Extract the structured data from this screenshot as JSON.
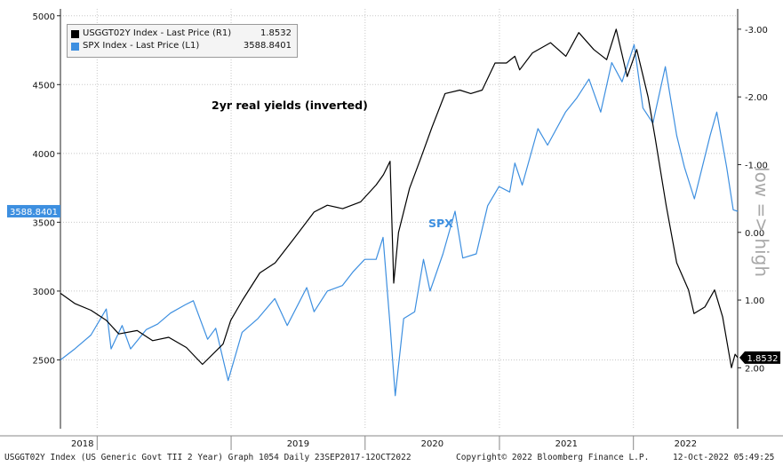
{
  "chart_data": {
    "type": "line",
    "annotations": {
      "yields_label": "2yr real yields (inverted)",
      "spx_label": "SPX",
      "right_axis_note": "low => high"
    },
    "legend": {
      "placement": "top-left",
      "entries": [
        {
          "name": "USGGT02Y Index - Last Price (R1)",
          "value": "1.8532",
          "color": "#000000"
        },
        {
          "name": "SPX Index - Last Price (L1)",
          "value": "3588.8401",
          "color": "#3d8fe0"
        }
      ]
    },
    "left_axis": {
      "ylim": [
        2000,
        5050
      ],
      "ticks": [
        "2500",
        "3000",
        "3500",
        "4000",
        "4500",
        "5000"
      ],
      "last_value_tag": "3588.8401"
    },
    "right_axis": {
      "inverted": true,
      "ylim": [
        -3.3,
        2.9
      ],
      "ticks": [
        "-3.00",
        "-2.00",
        "-1.00",
        "0.00",
        "1.00",
        "2.00"
      ],
      "last_value_tag": "1.8532"
    },
    "x_axis": {
      "xlim": [
        "2017-09-23",
        "2022-10-12"
      ],
      "years": [
        "2018",
        "2019",
        "2020",
        "2021",
        "2022"
      ],
      "year_starts": [
        "2018-01-01",
        "2019-01-01",
        "2020-01-01",
        "2021-01-01",
        "2022-01-01"
      ]
    },
    "grid": true,
    "series": [
      {
        "name": "SPX Index - Last Price (L1)",
        "axis": "left",
        "color": "#3d8fe0",
        "x": [
          "2017-09-23",
          "2017-11-01",
          "2017-12-15",
          "2018-01-26",
          "2018-02-08",
          "2018-03-10",
          "2018-04-02",
          "2018-05-15",
          "2018-06-15",
          "2018-07-20",
          "2018-08-29",
          "2018-09-20",
          "2018-10-29",
          "2018-11-20",
          "2018-12-24",
          "2019-01-31",
          "2019-03-15",
          "2019-04-30",
          "2019-06-03",
          "2019-07-26",
          "2019-08-15",
          "2019-09-20",
          "2019-10-31",
          "2019-11-29",
          "2019-12-31",
          "2020-01-31",
          "2020-02-19",
          "2020-03-09",
          "2020-03-23",
          "2020-04-15",
          "2020-05-15",
          "2020-06-08",
          "2020-06-26",
          "2020-07-31",
          "2020-09-02",
          "2020-09-23",
          "2020-10-30",
          "2020-11-30",
          "2020-12-31",
          "2021-01-29",
          "2021-02-12",
          "2021-03-04",
          "2021-04-16",
          "2021-05-12",
          "2021-06-30",
          "2021-07-30",
          "2021-09-02",
          "2021-10-04",
          "2021-11-03",
          "2021-12-01",
          "2022-01-03",
          "2022-01-27",
          "2022-02-23",
          "2022-03-29",
          "2022-04-29",
          "2022-05-20",
          "2022-06-16",
          "2022-07-29",
          "2022-08-16",
          "2022-09-12",
          "2022-09-30",
          "2022-10-12"
        ],
        "y": [
          2500,
          2580,
          2680,
          2870,
          2580,
          2750,
          2580,
          2720,
          2760,
          2840,
          2900,
          2930,
          2650,
          2730,
          2350,
          2700,
          2800,
          2945,
          2750,
          3025,
          2850,
          3000,
          3040,
          3140,
          3230,
          3230,
          3390,
          2750,
          2240,
          2800,
          2850,
          3230,
          3000,
          3270,
          3580,
          3240,
          3270,
          3620,
          3760,
          3720,
          3930,
          3770,
          4180,
          4060,
          4300,
          4400,
          4540,
          4300,
          4660,
          4520,
          4790,
          4330,
          4220,
          4630,
          4130,
          3900,
          3670,
          4130,
          4300,
          3900,
          3590,
          3580
        ]
      },
      {
        "name": "USGGT02Y Index - Last Price (R1)",
        "axis": "right",
        "color": "#000000",
        "x": [
          "2017-09-23",
          "2017-11-01",
          "2017-12-15",
          "2018-01-26",
          "2018-03-01",
          "2018-04-20",
          "2018-06-01",
          "2018-07-15",
          "2018-09-01",
          "2018-10-15",
          "2018-12-10",
          "2018-12-31",
          "2019-02-01",
          "2019-03-20",
          "2019-05-01",
          "2019-06-20",
          "2019-08-15",
          "2019-09-20",
          "2019-11-01",
          "2019-12-20",
          "2020-01-31",
          "2020-02-20",
          "2020-03-09",
          "2020-03-19",
          "2020-04-01",
          "2020-05-01",
          "2020-06-01",
          "2020-07-01",
          "2020-08-06",
          "2020-09-15",
          "2020-10-15",
          "2020-11-15",
          "2020-12-20",
          "2021-01-20",
          "2021-02-12",
          "2021-02-25",
          "2021-04-01",
          "2021-05-20",
          "2021-07-01",
          "2021-08-05",
          "2021-09-15",
          "2021-10-20",
          "2021-11-15",
          "2021-12-15",
          "2022-01-10",
          "2022-02-10",
          "2022-03-01",
          "2022-03-31",
          "2022-04-29",
          "2022-05-31",
          "2022-06-15",
          "2022-07-15",
          "2022-08-10",
          "2022-09-01",
          "2022-09-25",
          "2022-10-05",
          "2022-10-12"
        ],
        "y": [
          0.9,
          1.05,
          1.15,
          1.3,
          1.5,
          1.45,
          1.6,
          1.55,
          1.7,
          1.95,
          1.65,
          1.3,
          1.0,
          0.6,
          0.45,
          0.1,
          -0.3,
          -0.4,
          -0.35,
          -0.45,
          -0.7,
          -0.85,
          -1.05,
          0.75,
          0.0,
          -0.65,
          -1.1,
          -1.55,
          -2.05,
          -2.1,
          -2.05,
          -2.1,
          -2.5,
          -2.5,
          -2.6,
          -2.4,
          -2.65,
          -2.8,
          -2.6,
          -2.95,
          -2.7,
          -2.55,
          -3.0,
          -2.3,
          -2.7,
          -2.0,
          -1.4,
          -0.4,
          0.45,
          0.85,
          1.2,
          1.1,
          0.85,
          1.25,
          2.0,
          1.8,
          1.85
        ]
      }
    ]
  },
  "footer": {
    "left": "USGGT02Y Index (US Generic Govt TII 2 Year) Graph 1054  Daily 23SEP2017-12OCT2022",
    "center": "Copyright© 2022 Bloomberg Finance L.P.",
    "right": "12-Oct-2022 05:49:25"
  }
}
